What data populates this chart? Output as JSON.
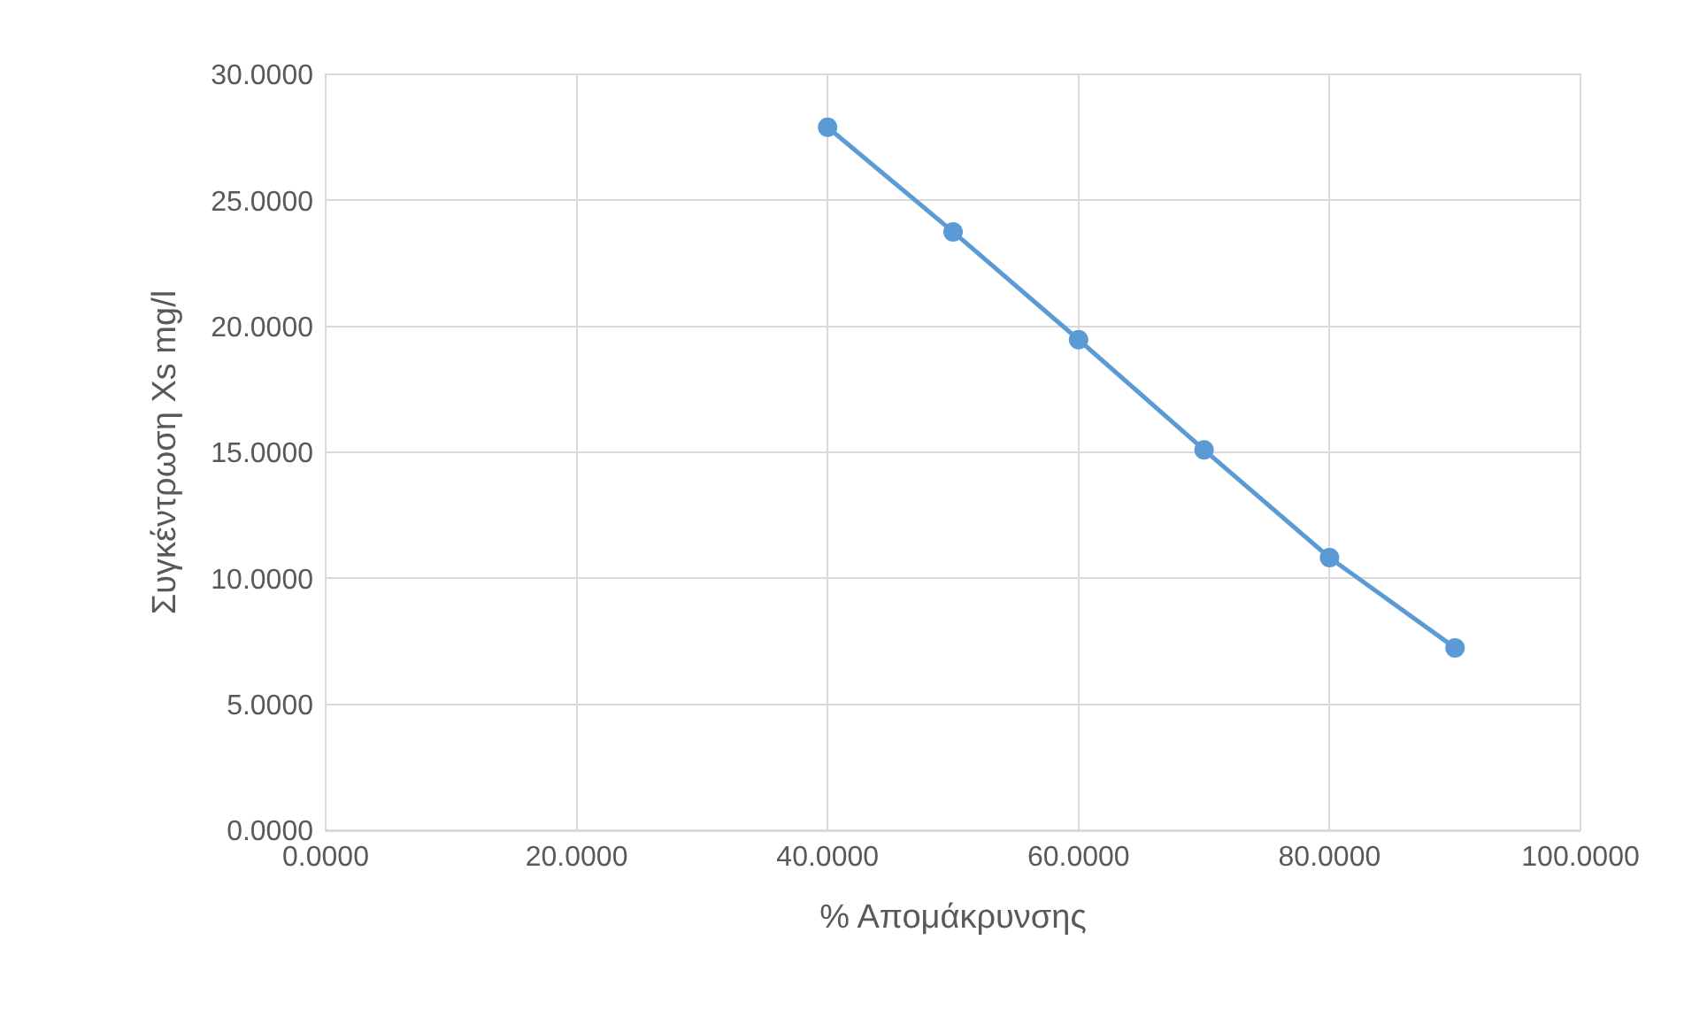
{
  "chart_data": {
    "type": "line",
    "xlabel": "% Απομάκρυνσης",
    "ylabel": "Συγκέντρωση Xs mg/l",
    "x": [
      40,
      50,
      60,
      70,
      80,
      90
    ],
    "series": [
      {
        "color": "#5b9bd5",
        "values": [
          27.9,
          23.75,
          19.47,
          15.1,
          10.82,
          7.24
        ]
      }
    ],
    "xlim": [
      0,
      100
    ],
    "xticks": [
      {
        "value": 0,
        "label": "0.0000"
      },
      {
        "value": 20,
        "label": "20.0000"
      },
      {
        "value": 40,
        "label": "40.0000"
      },
      {
        "value": 60,
        "label": "60.0000"
      },
      {
        "value": 80,
        "label": "80.0000"
      },
      {
        "value": 100,
        "label": "100.0000"
      }
    ],
    "ylim": [
      0,
      30
    ],
    "yticks": [
      {
        "value": 0,
        "label": "0.0000"
      },
      {
        "value": 5,
        "label": "5.0000"
      },
      {
        "value": 10,
        "label": "10.0000"
      },
      {
        "value": 15,
        "label": "15.0000"
      },
      {
        "value": 20,
        "label": "20.0000"
      },
      {
        "value": 25,
        "label": "25.0000"
      },
      {
        "value": 30,
        "label": "30.0000"
      }
    ],
    "grid": true,
    "legend": false,
    "marker": "circle",
    "line_style": "solid"
  }
}
